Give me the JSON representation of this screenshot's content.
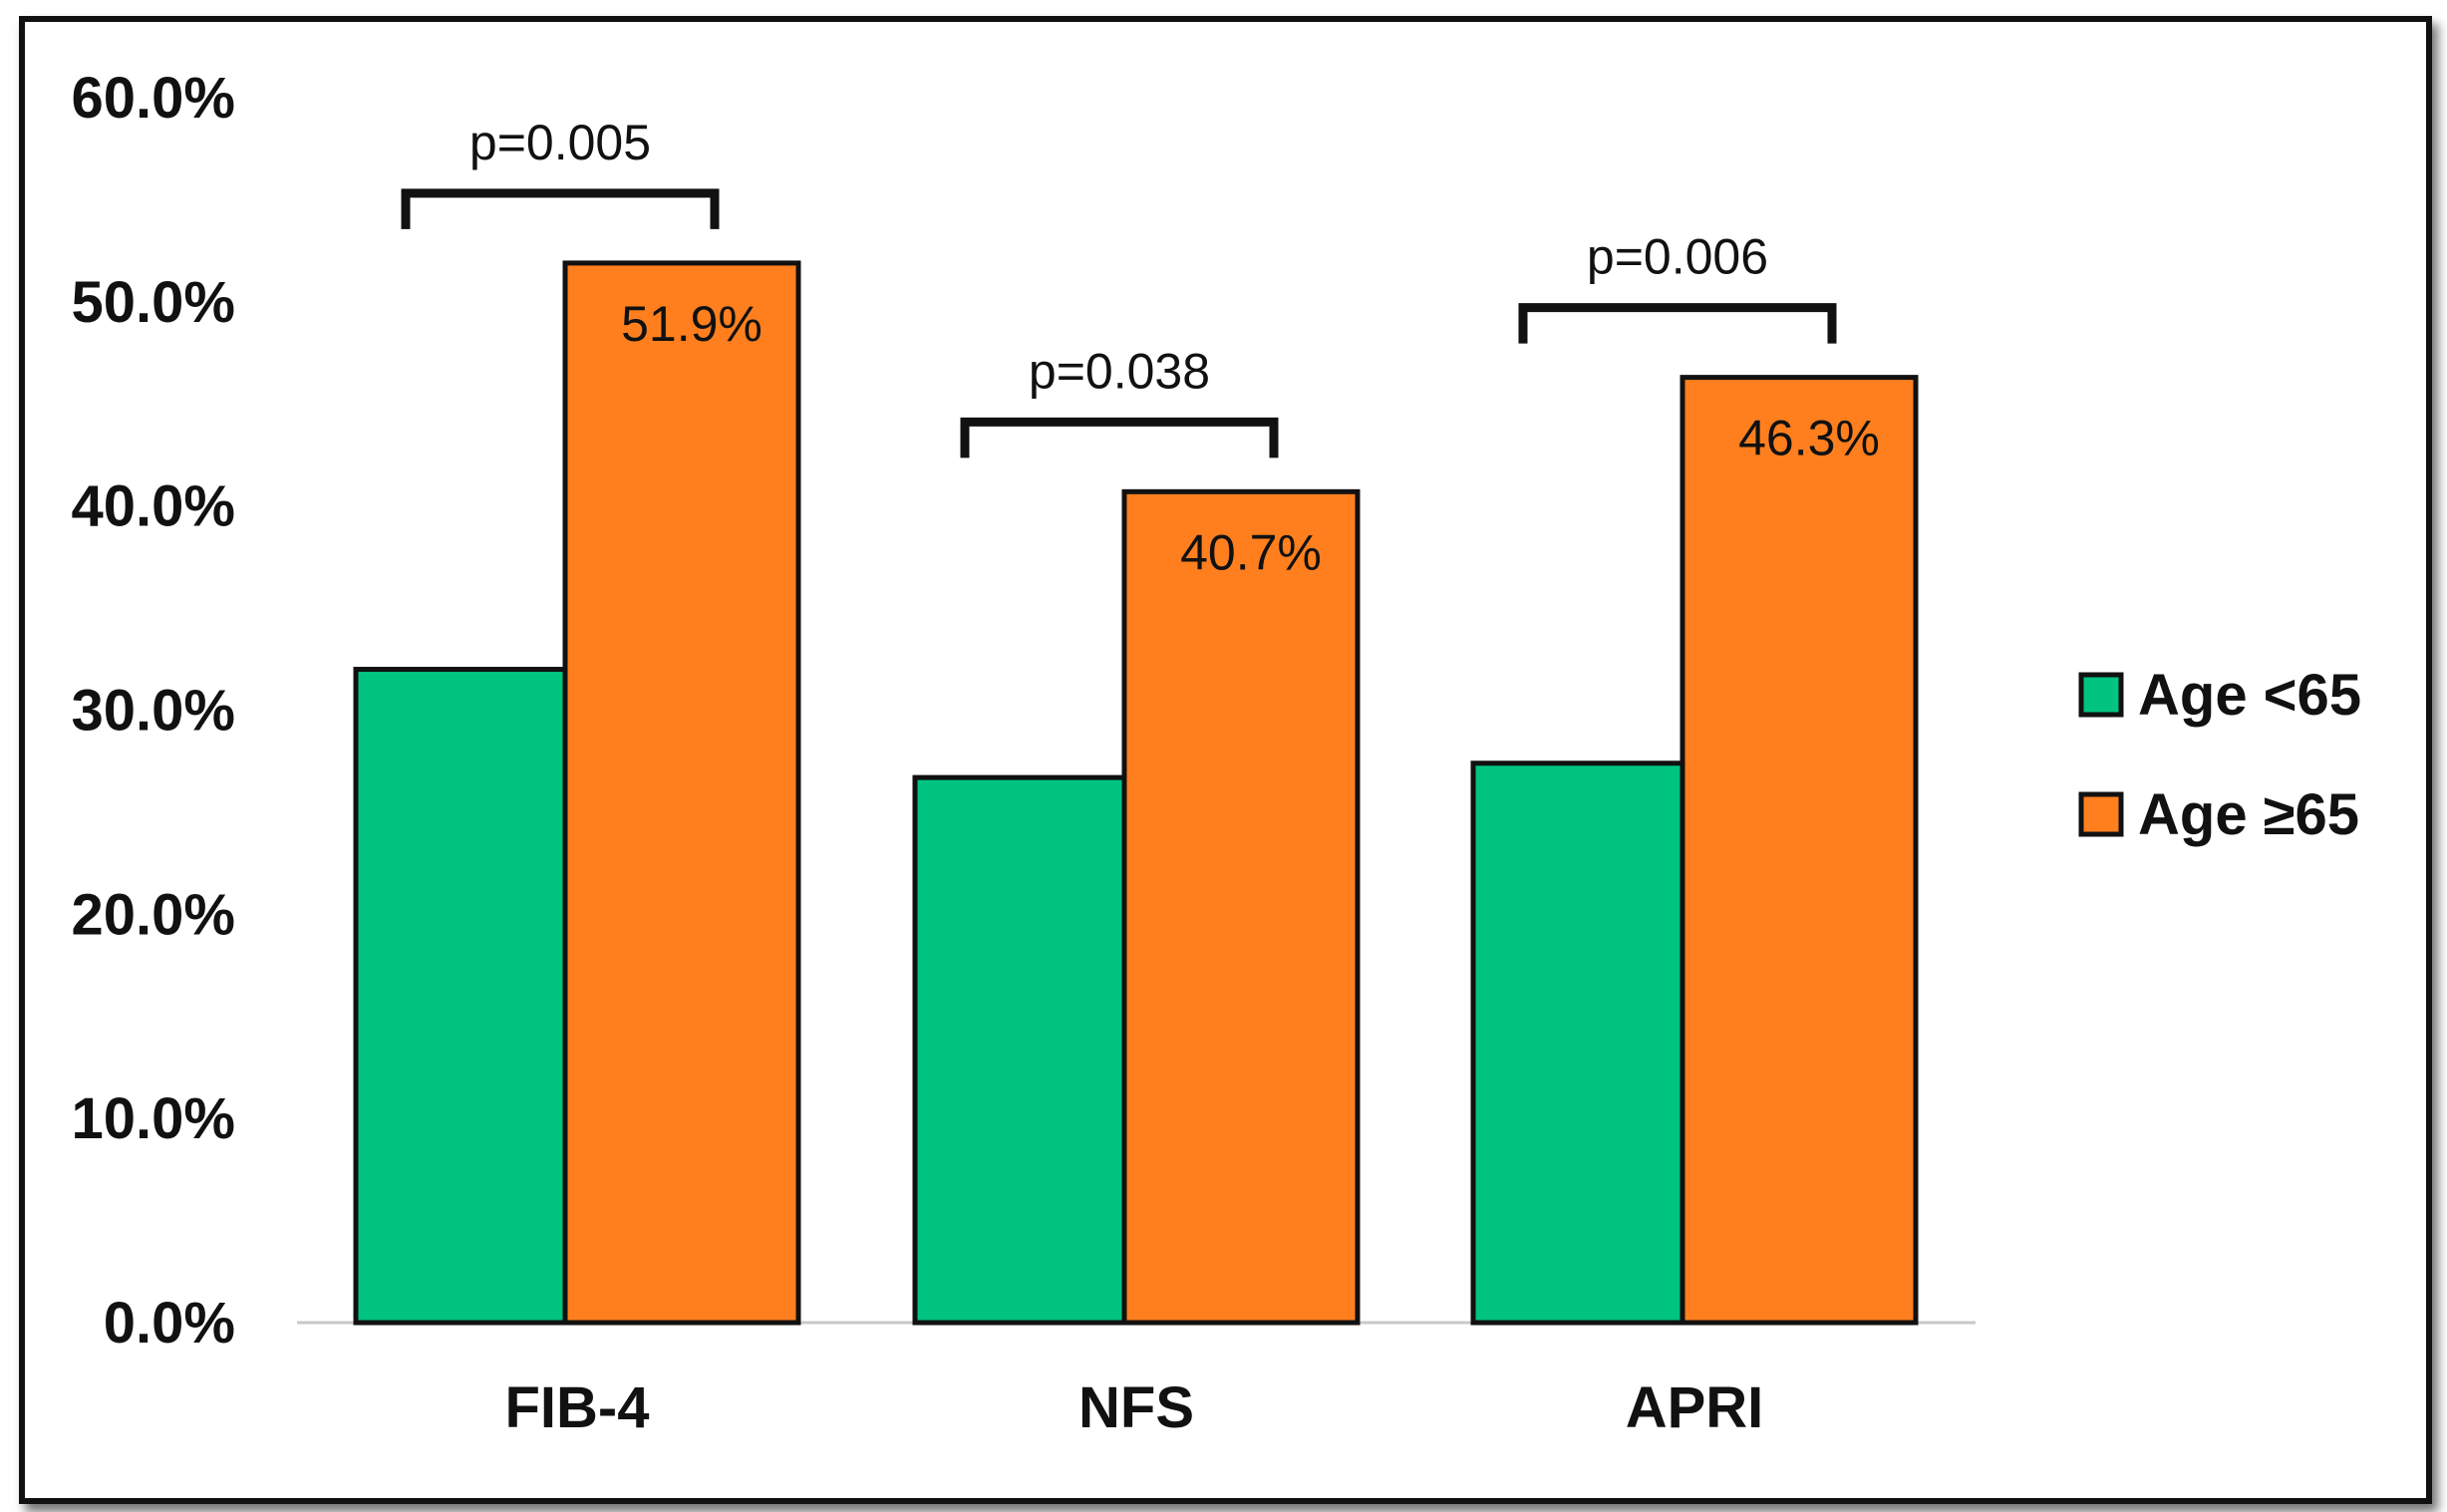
{
  "chart_data": {
    "type": "bar",
    "categories": [
      "FIB-4",
      "NFS",
      "APRI"
    ],
    "series": [
      {
        "name": "Age <65",
        "values": [
          32.0,
          26.7,
          27.4
        ],
        "color": "#00C47F"
      },
      {
        "name": "Age ≥65",
        "values": [
          51.9,
          40.7,
          46.3
        ],
        "color": "#FF7F1F"
      }
    ],
    "data_labels": [
      "51.9%",
      "40.7%",
      "46.3%"
    ],
    "ylim": [
      0,
      60
    ],
    "yticks": [
      0,
      10,
      20,
      30,
      40,
      50,
      60
    ],
    "ytick_labels": [
      "0.0%",
      "10.0%",
      "20.0%",
      "30.0%",
      "40.0%",
      "50.0%",
      "60.0%"
    ],
    "annotations": [
      {
        "category": "FIB-4",
        "text": "p=0.005"
      },
      {
        "category": "NFS",
        "text": "p=0.038"
      },
      {
        "category": "APRI",
        "text": "p=0.006"
      }
    ],
    "title": "",
    "xlabel": "",
    "ylabel": "",
    "grid": false,
    "legend_position": "right"
  }
}
